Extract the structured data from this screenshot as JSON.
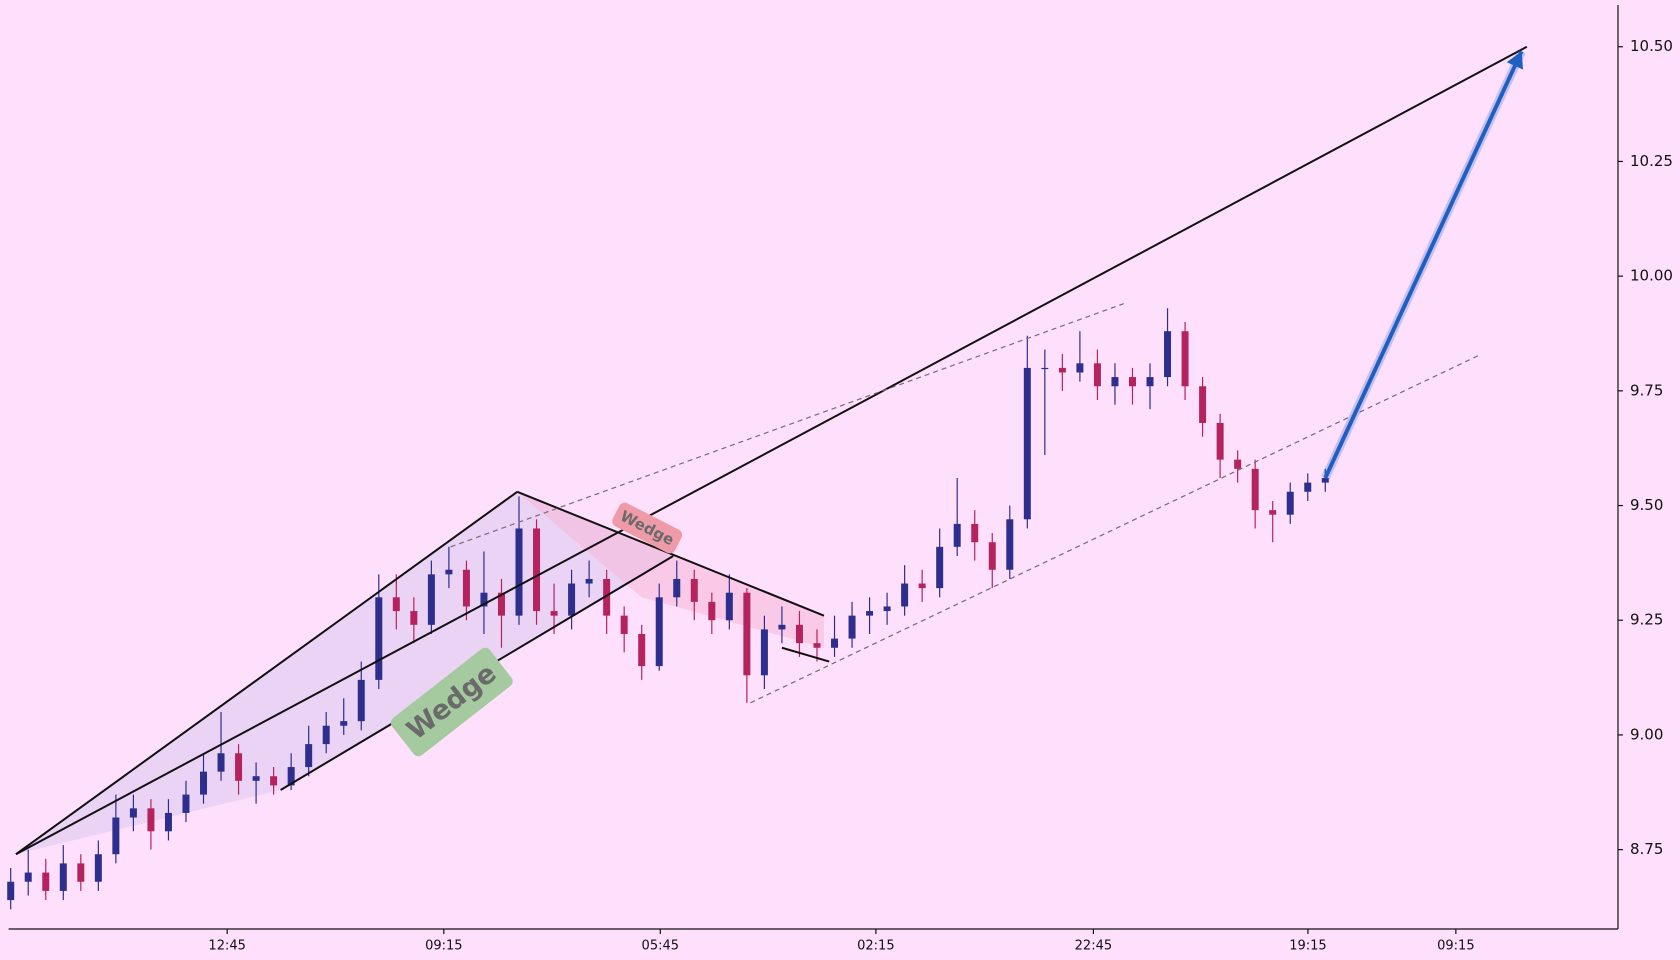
{
  "chart_data": {
    "type": "candlestick",
    "up_color": "#2e2f8c",
    "down_color": "#b5235f",
    "background": "#ffe0fc",
    "open": [
      8.64,
      8.68,
      8.7,
      8.66,
      8.72,
      8.68,
      8.74,
      8.82,
      8.84,
      8.79,
      8.83,
      8.87,
      8.92,
      8.96,
      8.9,
      8.91,
      8.89,
      8.93,
      8.98,
      9.02,
      9.03,
      9.12,
      9.3,
      9.27,
      9.24,
      9.35,
      9.36,
      9.28,
      9.31,
      9.26,
      9.45,
      9.27,
      9.26,
      9.33,
      9.34,
      9.26,
      9.22,
      9.15,
      9.3,
      9.34,
      9.29,
      9.25,
      9.31,
      9.13,
      9.23,
      9.24,
      9.2,
      9.19,
      9.21,
      9.26,
      9.27,
      9.28,
      9.33,
      9.32,
      9.41,
      9.46,
      9.42,
      9.36,
      9.47,
      9.8,
      9.8,
      9.79,
      9.81,
      9.76,
      9.78,
      9.76,
      9.78,
      9.88,
      9.76,
      9.68,
      9.6,
      9.58,
      9.49,
      9.48,
      9.53,
      9.55
    ],
    "high": [
      8.71,
      8.75,
      8.73,
      8.76,
      8.74,
      8.77,
      8.87,
      8.87,
      8.86,
      8.86,
      8.9,
      8.96,
      9.05,
      8.98,
      8.94,
      8.93,
      8.96,
      9.02,
      9.05,
      9.08,
      9.16,
      9.35,
      9.35,
      9.3,
      9.38,
      9.41,
      9.38,
      9.4,
      9.34,
      9.52,
      9.47,
      9.33,
      9.36,
      9.38,
      9.36,
      9.28,
      9.24,
      9.33,
      9.38,
      9.36,
      9.31,
      9.35,
      9.32,
      9.26,
      9.28,
      9.27,
      9.23,
      9.26,
      9.29,
      9.3,
      9.31,
      9.37,
      9.36,
      9.45,
      9.56,
      9.49,
      9.44,
      9.5,
      9.87,
      9.84,
      9.83,
      9.88,
      9.84,
      9.81,
      9.8,
      9.81,
      9.93,
      9.9,
      9.78,
      9.7,
      9.62,
      9.6,
      9.51,
      9.55,
      9.57,
      9.58
    ],
    "low": [
      8.62,
      8.65,
      8.64,
      8.64,
      8.66,
      8.66,
      8.72,
      8.79,
      8.75,
      8.77,
      8.81,
      8.85,
      8.9,
      8.87,
      8.85,
      8.87,
      8.88,
      8.91,
      8.96,
      9.0,
      9.01,
      9.1,
      9.23,
      9.2,
      9.22,
      9.32,
      9.25,
      9.22,
      9.19,
      9.24,
      9.24,
      9.22,
      9.23,
      9.3,
      9.22,
      9.18,
      9.12,
      9.14,
      9.28,
      9.25,
      9.22,
      9.23,
      9.07,
      9.1,
      9.2,
      9.17,
      9.16,
      9.17,
      9.19,
      9.22,
      9.24,
      9.26,
      9.29,
      9.3,
      9.39,
      9.38,
      9.32,
      9.34,
      9.45,
      9.61,
      9.75,
      9.77,
      9.73,
      9.72,
      9.72,
      9.71,
      9.76,
      9.73,
      9.65,
      9.56,
      9.55,
      9.45,
      9.42,
      9.46,
      9.51,
      9.53
    ],
    "close": [
      8.68,
      8.7,
      8.66,
      8.72,
      8.68,
      8.74,
      8.82,
      8.84,
      8.79,
      8.83,
      8.87,
      8.92,
      8.96,
      8.9,
      8.91,
      8.89,
      8.93,
      8.98,
      9.02,
      9.03,
      9.12,
      9.3,
      9.27,
      9.24,
      9.35,
      9.36,
      9.28,
      9.31,
      9.26,
      9.45,
      9.27,
      9.26,
      9.33,
      9.34,
      9.26,
      9.22,
      9.15,
      9.3,
      9.34,
      9.29,
      9.25,
      9.31,
      9.13,
      9.23,
      9.24,
      9.2,
      9.19,
      9.21,
      9.26,
      9.27,
      9.28,
      9.33,
      9.32,
      9.41,
      9.46,
      9.42,
      9.36,
      9.47,
      9.8,
      9.8,
      9.79,
      9.81,
      9.76,
      9.78,
      9.76,
      9.78,
      9.88,
      9.76,
      9.68,
      9.6,
      9.58,
      9.49,
      9.48,
      9.53,
      9.55,
      9.56
    ],
    "xlim": [
      -0.12,
      91.7
    ],
    "xticks": [
      {
        "value": 12.35,
        "label": "12:45"
      },
      {
        "value": 24.71,
        "label": "09:15"
      },
      {
        "value": 37.06,
        "label": "05:45"
      },
      {
        "value": 49.36,
        "label": "02:15"
      },
      {
        "value": 61.77,
        "label": "22:45"
      },
      {
        "value": 74.01,
        "label": "19:15"
      },
      {
        "value": 82.45,
        "label": "09:15"
      }
    ],
    "ylim": [
      8.577,
      10.591
    ],
    "yticks": [
      8.75,
      {
        "value": 9.0,
        "label": "9.00"
      },
      9.25,
      {
        "value": 9.5,
        "label": "9.50"
      },
      9.75,
      {
        "value": 10.0,
        "label": "10.00"
      },
      10.25,
      {
        "value": 10.5,
        "label": "10.50"
      }
    ],
    "regions": [
      {
        "color": "#d8c8ee",
        "points": [
          [
            0.3,
            8.74
          ],
          [
            28.9,
            9.53
          ],
          [
            37.8,
            9.39
          ],
          [
            15.4,
            8.88
          ],
          [
            0.3,
            8.74
          ]
        ]
      },
      {
        "color": "#f6b6d6",
        "points": [
          [
            28.9,
            9.53
          ],
          [
            46.4,
            9.26
          ],
          [
            46.4,
            9.19
          ],
          [
            36.0,
            9.3
          ]
        ]
      }
    ],
    "lines": [
      {
        "style": "solid",
        "points": [
          [
            0.3,
            8.74
          ],
          [
            86.5,
            10.5
          ]
        ]
      },
      {
        "style": "solid",
        "points": [
          [
            0.3,
            8.74
          ],
          [
            28.9,
            9.53
          ]
        ]
      },
      {
        "style": "solid",
        "points": [
          [
            15.4,
            8.88
          ],
          [
            37.8,
            9.39
          ]
        ]
      },
      {
        "style": "solid",
        "points": [
          [
            28.9,
            9.53
          ],
          [
            46.4,
            9.26
          ]
        ]
      },
      {
        "style": "solid",
        "points": [
          [
            44.0,
            9.19
          ],
          [
            46.7,
            9.16
          ]
        ]
      },
      {
        "style": "dashed",
        "points": [
          [
            25.1,
            9.41
          ],
          [
            63.5,
            9.94
          ]
        ]
      },
      {
        "style": "dashed",
        "points": [
          [
            42.2,
            9.07
          ],
          [
            83.9,
            9.83
          ]
        ]
      }
    ],
    "arrow": {
      "color": "#1f5fc2",
      "points": [
        [
          75.0,
          9.56
        ],
        [
          86.2,
          10.49
        ]
      ]
    },
    "labels": [
      {
        "text": "Wedge",
        "color": "#a6caa0",
        "points": [
          [
            25.2,
            9.07
          ]
        ]
      },
      {
        "text": "Wedge",
        "color": "#ef9aa8",
        "points": [
          [
            36.3,
            9.45
          ]
        ]
      }
    ]
  }
}
